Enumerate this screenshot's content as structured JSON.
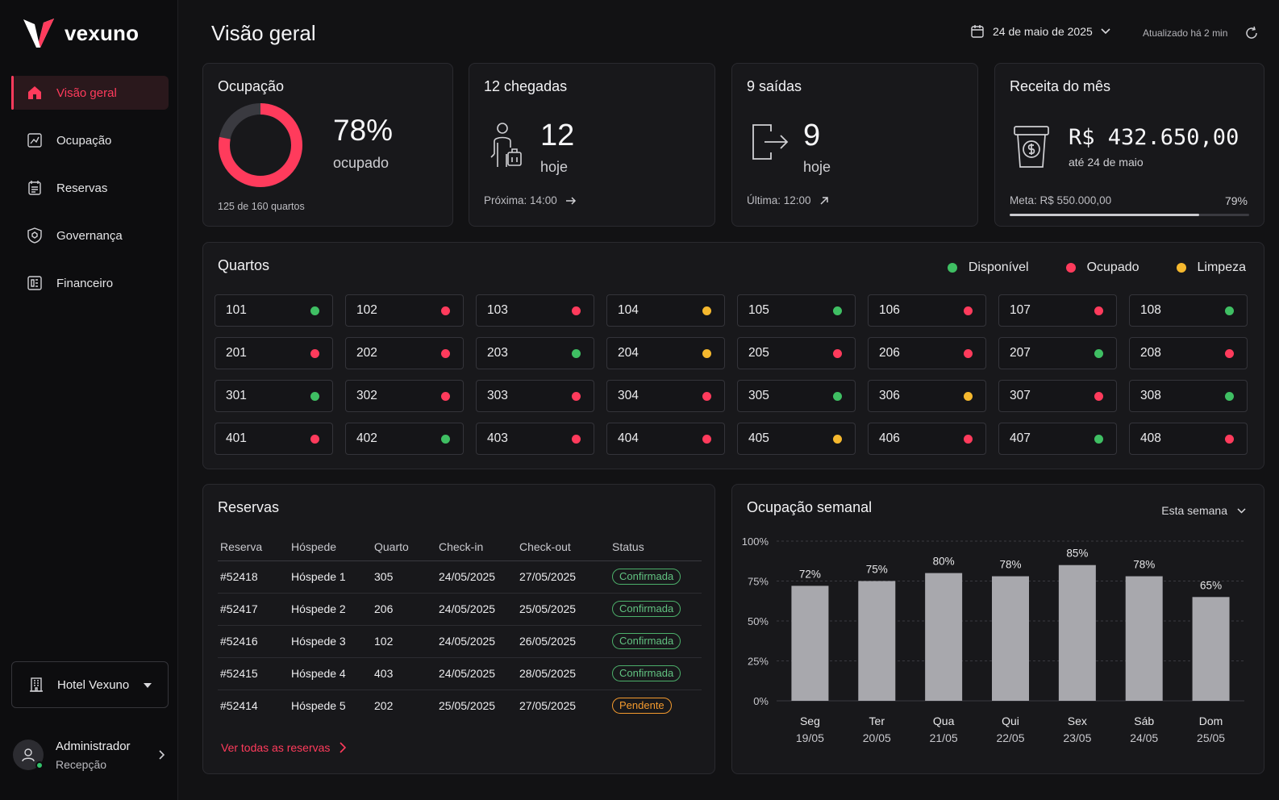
{
  "brand": {
    "name": "vexuno"
  },
  "sidebar": {
    "items": [
      {
        "label": "Visão geral",
        "icon": "home-icon",
        "active": true
      },
      {
        "label": "Ocupação",
        "icon": "occupancy-icon",
        "active": false
      },
      {
        "label": "Reservas",
        "icon": "reservations-icon",
        "active": false
      },
      {
        "label": "Governança",
        "icon": "shield-icon",
        "active": false
      },
      {
        "label": "Financeiro",
        "icon": "finance-icon",
        "active": false
      }
    ],
    "hotel": "Hotel Vexuno",
    "user": {
      "name": "Administrador",
      "role": "Recepção"
    }
  },
  "header": {
    "title": "Visão geral",
    "date": "24 de maio de 2025",
    "updated": "Atualizado há 2 min"
  },
  "occupancy": {
    "title": "Ocupação",
    "percent_text": "78%",
    "percent": 78,
    "label": "ocupado",
    "footer": "125 de 160 quartos"
  },
  "arrivals": {
    "title": "12 chegadas",
    "count": "12",
    "sub": "hoje",
    "footer": "Próxima: 14:00"
  },
  "departures": {
    "title": "9 saídas",
    "count": "9",
    "sub": "hoje",
    "footer": "Última: 12:00"
  },
  "revenue": {
    "title": "Receita do mês",
    "value": "R$ 432.650,00",
    "sub": "até 24 de maio",
    "goal": "Meta: R$ 550.000,00",
    "percent_text": "79%",
    "percent": 79
  },
  "rooms": {
    "title": "Quartos",
    "legend": [
      {
        "key": "disponivel",
        "label": "Disponível",
        "color": "#3fbf63"
      },
      {
        "key": "ocupado",
        "label": "Ocupado",
        "color": "#ff3b5c"
      },
      {
        "key": "limpeza",
        "label": "Limpeza",
        "color": "#f5b82e"
      }
    ],
    "list": [
      {
        "number": "101",
        "status": "disponivel"
      },
      {
        "number": "102",
        "status": "ocupado"
      },
      {
        "number": "103",
        "status": "ocupado"
      },
      {
        "number": "104",
        "status": "limpeza"
      },
      {
        "number": "105",
        "status": "disponivel"
      },
      {
        "number": "106",
        "status": "ocupado"
      },
      {
        "number": "107",
        "status": "ocupado"
      },
      {
        "number": "108",
        "status": "disponivel"
      },
      {
        "number": "201",
        "status": "ocupado"
      },
      {
        "number": "202",
        "status": "ocupado"
      },
      {
        "number": "203",
        "status": "disponivel"
      },
      {
        "number": "204",
        "status": "limpeza"
      },
      {
        "number": "205",
        "status": "ocupado"
      },
      {
        "number": "206",
        "status": "ocupado"
      },
      {
        "number": "207",
        "status": "disponivel"
      },
      {
        "number": "208",
        "status": "ocupado"
      },
      {
        "number": "301",
        "status": "disponivel"
      },
      {
        "number": "302",
        "status": "ocupado"
      },
      {
        "number": "303",
        "status": "ocupado"
      },
      {
        "number": "304",
        "status": "ocupado"
      },
      {
        "number": "305",
        "status": "disponivel"
      },
      {
        "number": "306",
        "status": "limpeza"
      },
      {
        "number": "307",
        "status": "ocupado"
      },
      {
        "number": "308",
        "status": "disponivel"
      },
      {
        "number": "401",
        "status": "ocupado"
      },
      {
        "number": "402",
        "status": "disponivel"
      },
      {
        "number": "403",
        "status": "ocupado"
      },
      {
        "number": "404",
        "status": "ocupado"
      },
      {
        "number": "405",
        "status": "limpeza"
      },
      {
        "number": "406",
        "status": "ocupado"
      },
      {
        "number": "407",
        "status": "disponivel"
      },
      {
        "number": "408",
        "status": "ocupado"
      }
    ]
  },
  "reservations": {
    "title": "Reservas",
    "columns": [
      "Reserva",
      "Hóspede",
      "Quarto",
      "Check-in",
      "Check-out",
      "Status"
    ],
    "rows": [
      {
        "id": "#52418",
        "guest": "Hóspede 1",
        "room": "305",
        "checkin": "24/05/2025",
        "checkout": "27/05/2025",
        "status": "Confirmada",
        "status_type": "ok"
      },
      {
        "id": "#52417",
        "guest": "Hóspede 2",
        "room": "206",
        "checkin": "24/05/2025",
        "checkout": "25/05/2025",
        "status": "Confirmada",
        "status_type": "ok"
      },
      {
        "id": "#52416",
        "guest": "Hóspede 3",
        "room": "102",
        "checkin": "24/05/2025",
        "checkout": "26/05/2025",
        "status": "Confirmada",
        "status_type": "ok"
      },
      {
        "id": "#52415",
        "guest": "Hóspede 4",
        "room": "403",
        "checkin": "24/05/2025",
        "checkout": "28/05/2025",
        "status": "Confirmada",
        "status_type": "ok"
      },
      {
        "id": "#52414",
        "guest": "Hóspede 5",
        "room": "202",
        "checkin": "25/05/2025",
        "checkout": "27/05/2025",
        "status": "Pendente",
        "status_type": "pending"
      }
    ],
    "link": "Ver todas as reservas"
  },
  "weekly": {
    "title": "Ocupação semanal",
    "range_select": "Esta semana"
  },
  "chart_data": {
    "type": "bar",
    "categories": [
      "Seg",
      "Ter",
      "Qua",
      "Qui",
      "Sex",
      "Sáb",
      "Dom"
    ],
    "dates": [
      "19/05",
      "20/05",
      "21/05",
      "22/05",
      "23/05",
      "24/05",
      "25/05"
    ],
    "values": [
      72,
      75,
      80,
      78,
      85,
      78,
      65
    ],
    "data_labels": [
      "72%",
      "75%",
      "80%",
      "78%",
      "85%",
      "78%",
      "65%"
    ],
    "yticks": [
      "0%",
      "25%",
      "50%",
      "75%",
      "100%"
    ],
    "ylim": [
      0,
      100
    ],
    "grid": true,
    "bar_color": "#a8a8ad"
  }
}
